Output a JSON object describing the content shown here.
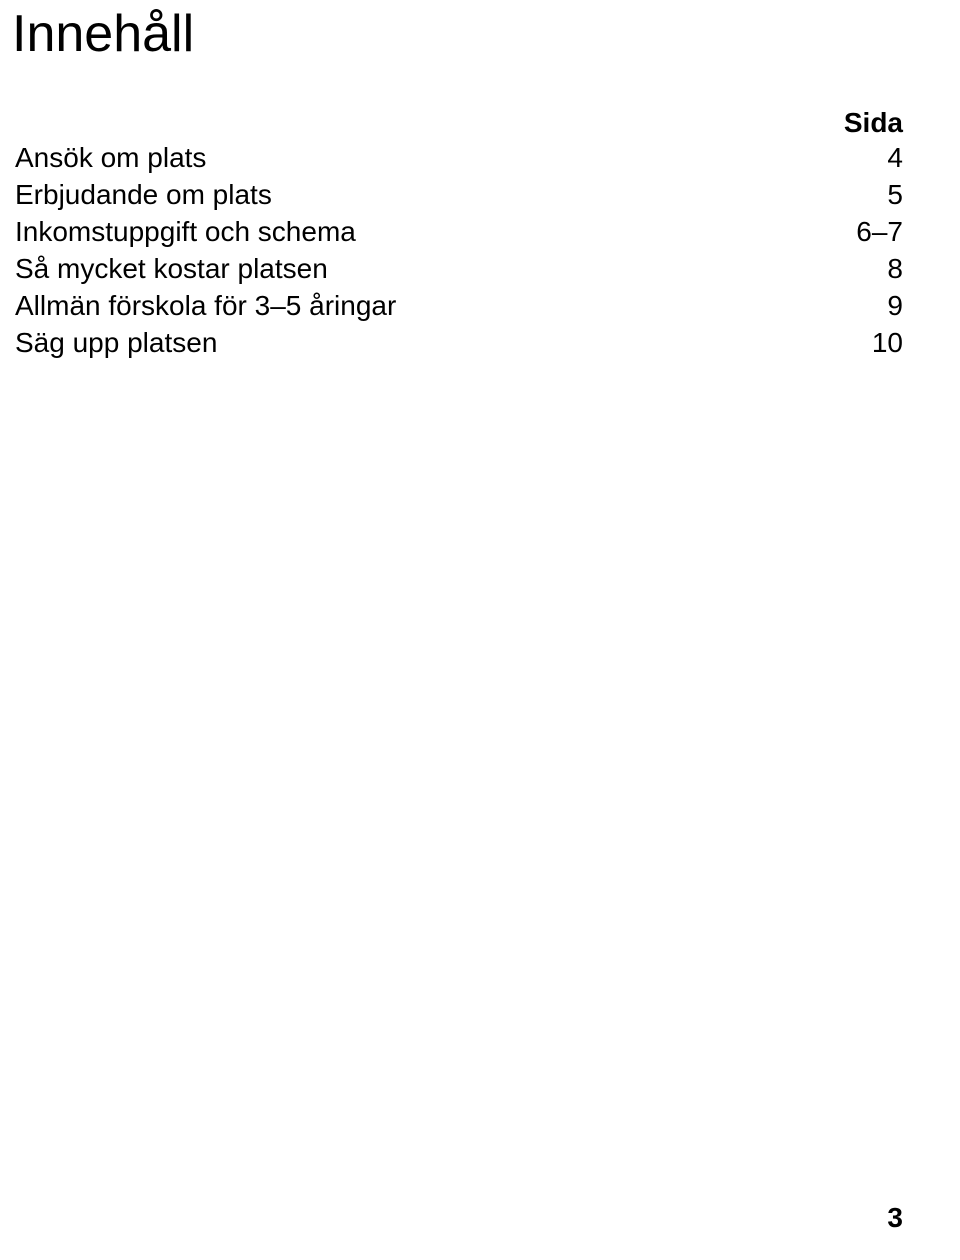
{
  "title": "Innehåll",
  "header_page_label": "Sida",
  "toc": [
    {
      "label": "Ansök om plats",
      "page": "4"
    },
    {
      "label": "Erbjudande om plats",
      "page": "5"
    },
    {
      "label": "Inkomstuppgift och schema",
      "page": "6–7"
    },
    {
      "label": "Så mycket kostar platsen",
      "page": "8"
    },
    {
      "label": "Allmän förskola för 3–5 åringar",
      "page": "9"
    },
    {
      "label": "Säg upp platsen",
      "page": "10"
    }
  ],
  "page_number": "3"
}
